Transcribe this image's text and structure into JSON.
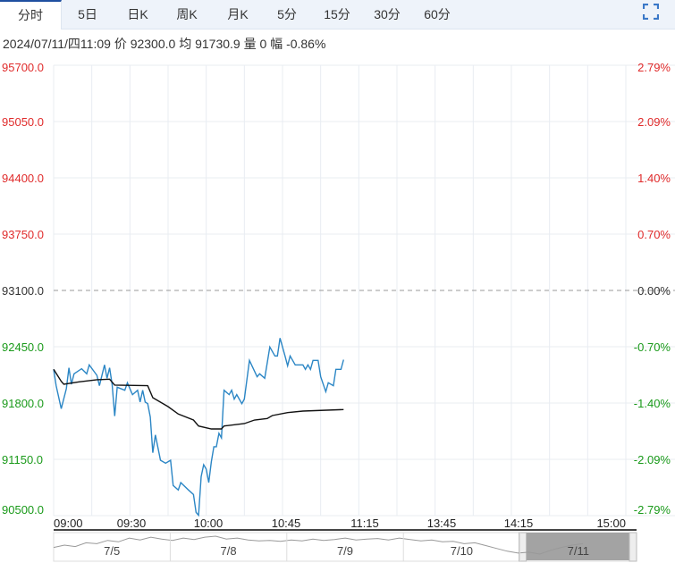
{
  "tabs": [
    {
      "label": "分时",
      "active": true
    },
    {
      "label": "5日"
    },
    {
      "label": "日K"
    },
    {
      "label": "周K"
    },
    {
      "label": "月K"
    },
    {
      "label": "5分"
    },
    {
      "label": "15分"
    },
    {
      "label": "30分"
    },
    {
      "label": "60分"
    }
  ],
  "fullscreen_icon": "fullscreen-icon",
  "info": {
    "datetime": "2024/07/11/四11:09",
    "price_label": "价",
    "price": "92300.0",
    "avg_label": "均",
    "avg": "91730.9",
    "vol_label": "量",
    "vol": "0",
    "chg_label": "幅",
    "chg": "-0.86%"
  },
  "colors": {
    "up": "#e02b2b",
    "down": "#1a9a1a",
    "price_line": "#2b86c5",
    "avg_line": "#111111",
    "neutral": "#333333"
  },
  "chart_data": {
    "type": "line",
    "ylim": [
      90500,
      95700
    ],
    "prev_close": 93100,
    "y_ticks": [
      "95700.0",
      "95050.0",
      "94400.0",
      "93750.0",
      "93100.0",
      "92450.0",
      "91800.0",
      "91150.0",
      "90500.0"
    ],
    "pct_ticks": [
      "2.79%",
      "2.09%",
      "1.40%",
      "0.70%",
      "0.00%",
      "-0.70%",
      "-1.40%",
      "-2.09%",
      "-2.79%"
    ],
    "x_ticks": [
      "09:00",
      "09:30",
      "10:00",
      "10:45",
      "11:15",
      "13:45",
      "14:15",
      "15:00"
    ],
    "sessions": [
      [
        "09:00",
        "10:15"
      ],
      [
        "10:30",
        "11:30"
      ],
      [
        "13:30",
        "15:00"
      ]
    ],
    "grid": true,
    "series": [
      {
        "key": "price",
        "points": [
          [
            "09:00",
            92189
          ],
          [
            "09:01",
            92000
          ],
          [
            "09:03",
            91735
          ],
          [
            "09:05",
            91965
          ],
          [
            "09:06",
            92206
          ],
          [
            "09:07",
            92017
          ],
          [
            "09:08",
            92137
          ],
          [
            "09:11",
            92196
          ],
          [
            "09:13",
            92137
          ],
          [
            "09:14",
            92241
          ],
          [
            "09:17",
            92120
          ],
          [
            "09:18",
            92000
          ],
          [
            "09:20",
            92241
          ],
          [
            "09:21",
            92086
          ],
          [
            "09:22",
            92206
          ],
          [
            "09:23",
            92017
          ],
          [
            "09:24",
            91649
          ],
          [
            "09:25",
            91983
          ],
          [
            "09:28",
            91948
          ],
          [
            "09:29",
            92034
          ],
          [
            "09:31",
            91897
          ],
          [
            "09:33",
            91948
          ],
          [
            "09:34",
            91811
          ],
          [
            "09:35",
            91948
          ],
          [
            "09:36",
            91811
          ],
          [
            "09:37",
            91793
          ],
          [
            "09:38",
            91639
          ],
          [
            "09:39",
            91226
          ],
          [
            "09:40",
            91432
          ],
          [
            "09:42",
            91140
          ],
          [
            "09:44",
            91106
          ],
          [
            "09:46",
            91140
          ],
          [
            "09:47",
            90848
          ],
          [
            "09:49",
            90796
          ],
          [
            "09:50",
            90882
          ],
          [
            "09:53",
            90796
          ],
          [
            "09:55",
            90745
          ],
          [
            "09:56",
            90538
          ],
          [
            "09:57",
            90504
          ],
          [
            "09:58",
            90951
          ],
          [
            "09:59",
            91088
          ],
          [
            "10:00",
            91037
          ],
          [
            "10:01",
            90882
          ],
          [
            "10:02",
            91123
          ],
          [
            "10:03",
            91295
          ],
          [
            "10:04",
            91295
          ],
          [
            "10:05",
            91450
          ],
          [
            "10:06",
            91398
          ],
          [
            "10:07",
            91948
          ],
          [
            "10:09",
            91897
          ],
          [
            "10:10",
            91948
          ],
          [
            "10:11",
            91845
          ],
          [
            "10:12",
            91897
          ],
          [
            "10:14",
            91793
          ],
          [
            "10:30",
            91845
          ],
          [
            "10:32",
            92292
          ],
          [
            "10:35",
            92103
          ],
          [
            "10:36",
            92137
          ],
          [
            "10:38",
            92086
          ],
          [
            "10:40",
            92447
          ],
          [
            "10:42",
            92344
          ],
          [
            "10:43",
            92344
          ],
          [
            "10:44",
            92550
          ],
          [
            "10:46",
            92344
          ],
          [
            "10:47",
            92230
          ],
          [
            "10:48",
            92344
          ],
          [
            "10:50",
            92241
          ],
          [
            "10:53",
            92241
          ],
          [
            "10:54",
            92189
          ],
          [
            "10:55",
            92241
          ],
          [
            "10:56",
            92189
          ],
          [
            "10:57",
            92292
          ],
          [
            "10:59",
            92292
          ],
          [
            "11:00",
            92103
          ],
          [
            "11:02",
            91931
          ],
          [
            "11:03",
            92034
          ],
          [
            "11:05",
            92000
          ],
          [
            "11:06",
            92189
          ],
          [
            "11:08",
            92189
          ],
          [
            "11:09",
            92300
          ]
        ]
      },
      {
        "key": "avg",
        "points": [
          [
            "09:00",
            92189
          ],
          [
            "09:03",
            92051
          ],
          [
            "09:04",
            92017
          ],
          [
            "09:10",
            92045
          ],
          [
            "09:17",
            92069
          ],
          [
            "09:22",
            92075
          ],
          [
            "09:24",
            92007
          ],
          [
            "09:37",
            92000
          ],
          [
            "09:39",
            91862
          ],
          [
            "09:45",
            91759
          ],
          [
            "09:49",
            91673
          ],
          [
            "09:55",
            91604
          ],
          [
            "09:57",
            91535
          ],
          [
            "10:02",
            91501
          ],
          [
            "10:06",
            91501
          ],
          [
            "10:07",
            91535
          ],
          [
            "10:30",
            91563
          ],
          [
            "10:34",
            91604
          ],
          [
            "10:39",
            91622
          ],
          [
            "10:41",
            91656
          ],
          [
            "10:47",
            91690
          ],
          [
            "10:53",
            91707
          ],
          [
            "11:09",
            91725
          ]
        ]
      }
    ]
  },
  "navigator": {
    "days": [
      "7/5",
      "7/8",
      "7/9",
      "7/10",
      "7/11"
    ],
    "selected": "7/11",
    "sparkline": [
      60,
      55,
      58,
      50,
      52,
      45,
      48,
      40,
      44,
      38,
      42,
      45,
      40,
      43,
      38,
      36,
      42,
      40,
      44,
      46,
      45,
      47,
      44,
      46,
      42,
      45,
      43,
      40,
      44,
      42,
      41,
      44,
      40,
      43,
      46,
      44,
      48,
      47,
      52,
      50,
      56,
      62,
      68,
      72,
      70,
      74,
      66,
      60,
      55,
      52
    ]
  }
}
